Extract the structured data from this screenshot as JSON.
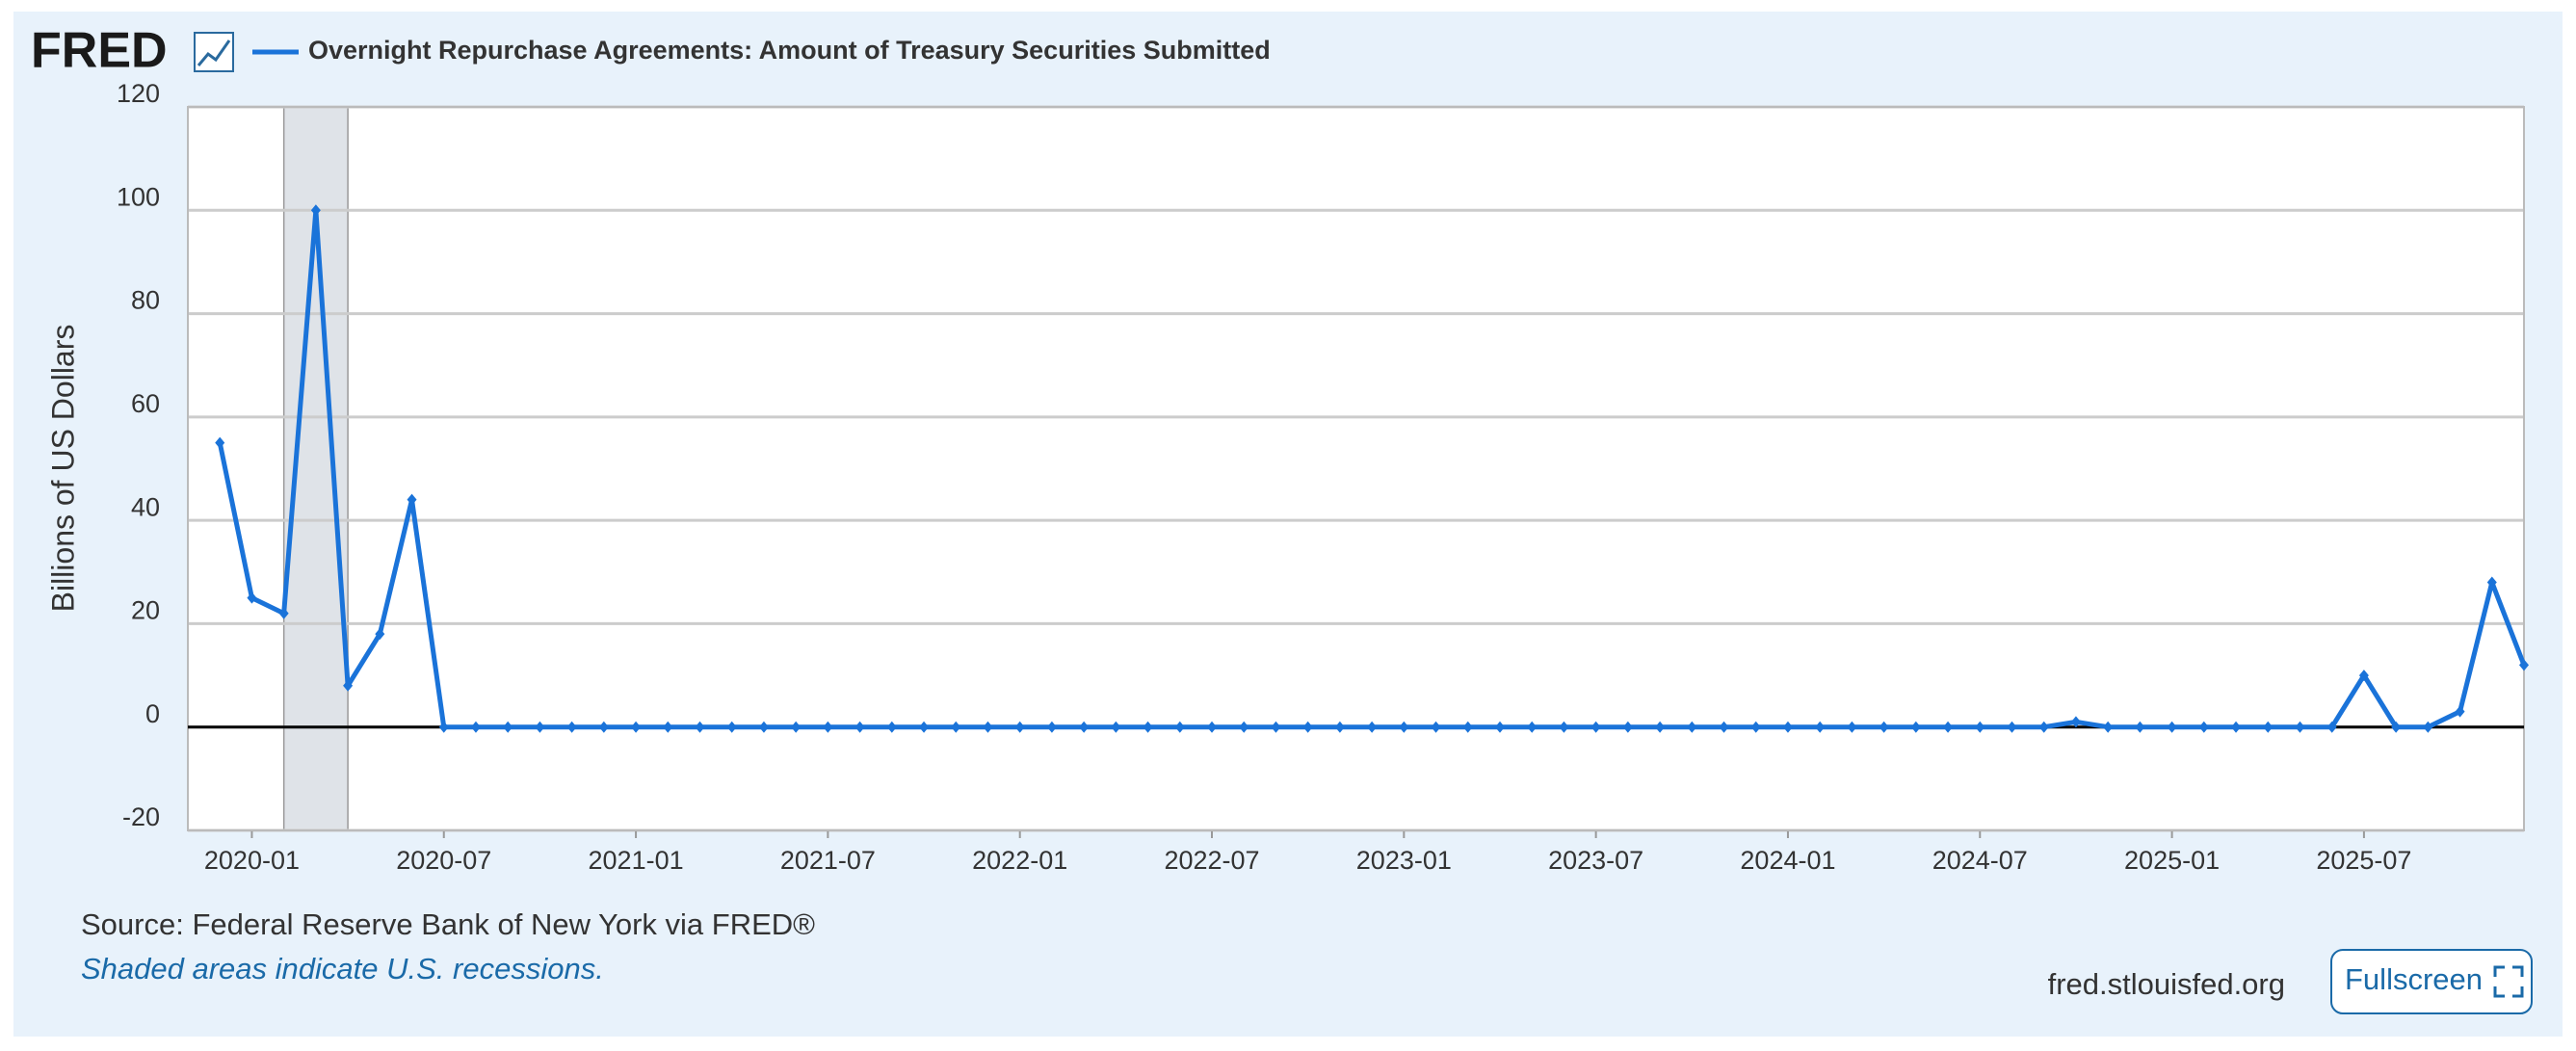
{
  "logo": "FRED",
  "chart_data": {
    "type": "line",
    "y_label": "Billions of US Dollars",
    "x": [
      "2019-12",
      "2020-01",
      "2020-02",
      "2020-03",
      "2020-04",
      "2020-05",
      "2020-06",
      "2020-07",
      "2020-08",
      "2020-09",
      "2020-10",
      "2020-11",
      "2020-12",
      "2021-01",
      "2021-02",
      "2021-03",
      "2021-04",
      "2021-05",
      "2021-06",
      "2021-07",
      "2021-08",
      "2021-09",
      "2021-10",
      "2021-11",
      "2021-12",
      "2022-01",
      "2022-02",
      "2022-03",
      "2022-04",
      "2022-05",
      "2022-06",
      "2022-07",
      "2022-08",
      "2022-09",
      "2022-10",
      "2022-11",
      "2022-12",
      "2023-01",
      "2023-02",
      "2023-03",
      "2023-04",
      "2023-05",
      "2023-06",
      "2023-07",
      "2023-08",
      "2023-09",
      "2023-10",
      "2023-11",
      "2023-12",
      "2024-01",
      "2024-02",
      "2024-03",
      "2024-04",
      "2024-05",
      "2024-06",
      "2024-07",
      "2024-08",
      "2024-09",
      "2024-10",
      "2024-11",
      "2024-12",
      "2025-01",
      "2025-02",
      "2025-03",
      "2025-04",
      "2025-05",
      "2025-06",
      "2025-07",
      "2025-08",
      "2025-09",
      "2025-10",
      "2025-11",
      "2025-12"
    ],
    "series": [
      {
        "name": "Overnight Repurchase Agreements: Amount of Treasury Securities Submitted",
        "color": "#1a73d9",
        "values": [
          55,
          25,
          22,
          100,
          8,
          18,
          44,
          0,
          0,
          0,
          0,
          0,
          0,
          0,
          0,
          0,
          0,
          0,
          0,
          0,
          0,
          0,
          0,
          0,
          0,
          0,
          0,
          0,
          0,
          0,
          0,
          0,
          0,
          0,
          0,
          0,
          0,
          0,
          0,
          0,
          0,
          0,
          0,
          0,
          0,
          0,
          0,
          0,
          0,
          0,
          0,
          0,
          0,
          0,
          0,
          0,
          0,
          0,
          1,
          0,
          0,
          0,
          0,
          0,
          0,
          0,
          0,
          10,
          0,
          0,
          3,
          28,
          12
        ]
      }
    ],
    "recessions": [
      {
        "start": "2020-02",
        "end": "2020-04"
      }
    ],
    "xlim": [
      "2019-11",
      "2025-12"
    ],
    "xticks": [
      "2020-01",
      "2020-07",
      "2021-01",
      "2021-07",
      "2022-01",
      "2022-07",
      "2023-01",
      "2023-07",
      "2024-01",
      "2024-07",
      "2025-01",
      "2025-07"
    ],
    "ylim": [
      -20,
      120
    ],
    "yticks": [
      -20,
      0,
      20,
      40,
      60,
      80,
      100,
      120
    ],
    "grid": true
  },
  "footer": {
    "source": "Source: Federal Reserve Bank of New York via FRED®",
    "note": "Shaded areas indicate U.S. recessions.",
    "site": "fred.stlouisfed.org",
    "button": "Fullscreen"
  }
}
